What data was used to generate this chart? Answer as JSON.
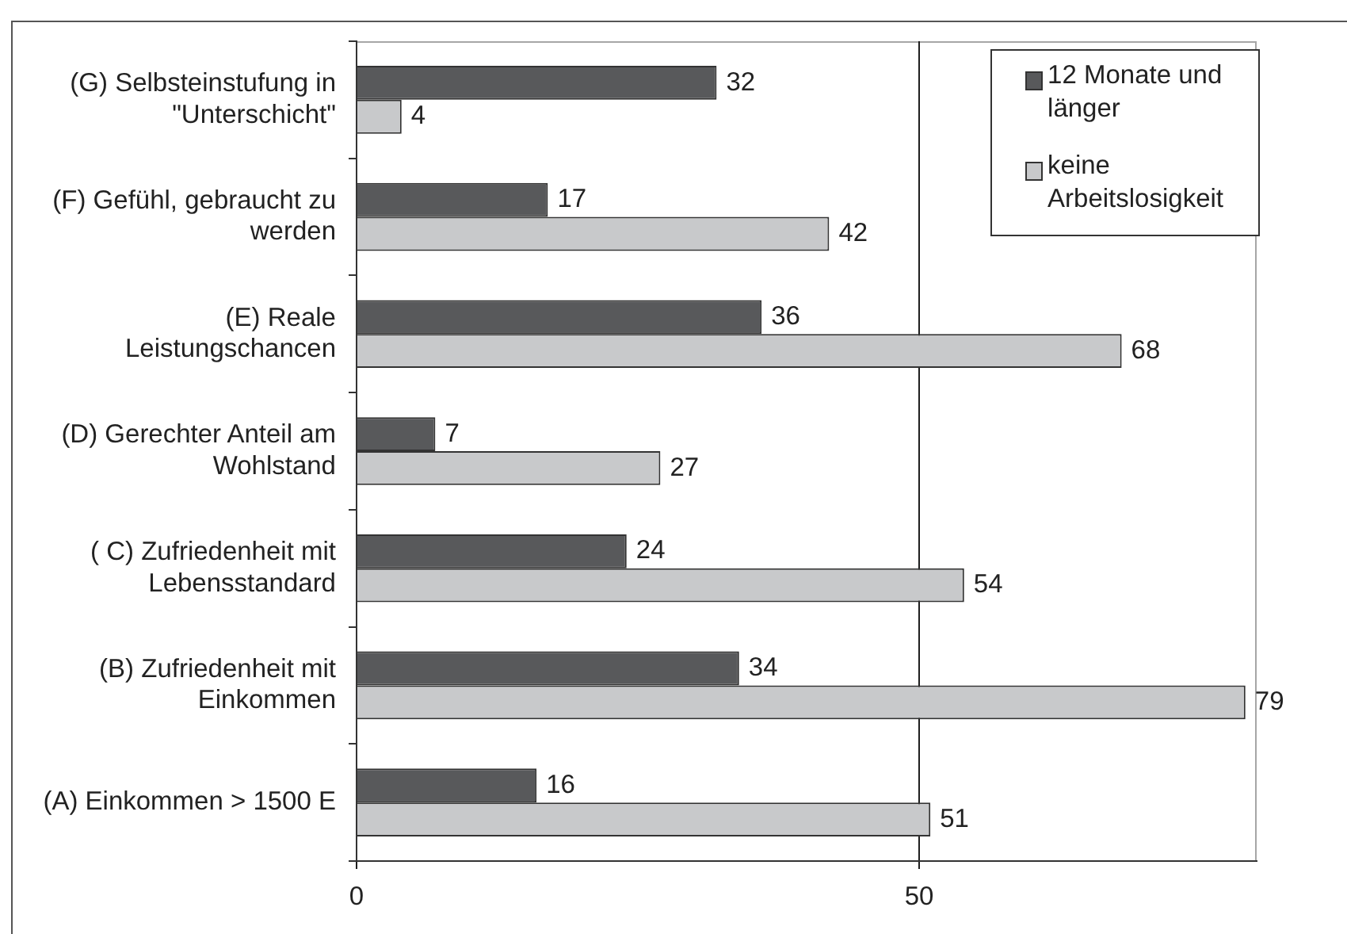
{
  "chart_data": {
    "type": "bar",
    "orientation": "horizontal",
    "categories": [
      "(G) Selbsteinstufung in \"Unterschicht\"",
      "(F) Gefühl, gebraucht zu werden",
      "(E) Reale Leistungschancen",
      "(D) Gerechter Anteil am Wohlstand",
      "( C) Zufriedenheit mit Lebensstandard",
      "(B) Zufriedenheit mit Einkommen",
      "(A) Einkommen > 1500 E"
    ],
    "series": [
      {
        "name": "12 Monate und länger",
        "color": "#58595b",
        "values": [
          32,
          17,
          36,
          7,
          24,
          34,
          16
        ]
      },
      {
        "name": "keine Arbeitslosigkeit",
        "color": "#c8c9cb",
        "values": [
          4,
          42,
          68,
          27,
          54,
          79,
          51
        ]
      }
    ],
    "xlim": [
      0,
      80
    ],
    "xticks": [
      0,
      50
    ],
    "grid": "x",
    "legend": "top right",
    "data_labels": true
  }
}
